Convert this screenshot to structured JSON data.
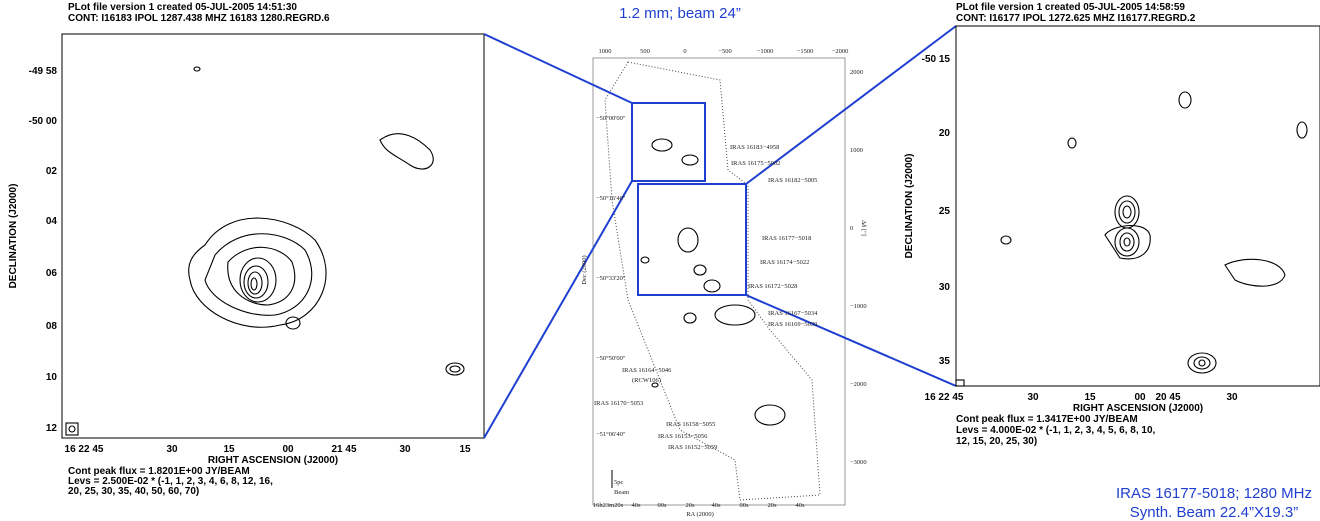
{
  "left": {
    "header": [
      "PLot file version 1  created 05-JUL-2005 14:51:30",
      "CONT: I16183  IPOL  1287.438 MHZ  16183 1280.REGRD.6"
    ],
    "y_ticks": [
      "-49 58",
      "-50 00",
      "02",
      "04",
      "06",
      "08",
      "10",
      "12"
    ],
    "x_ticks": [
      "16 22 45",
      "30",
      "15",
      "00",
      "21 45",
      "30",
      "15"
    ],
    "x_label": "RIGHT ASCENSION (J2000)",
    "y_label": "DECLINATION (J2000)",
    "footer": [
      "Cont peak flux =  1.8201E+00 JY/BEAM",
      "Levs = 2.500E-02 * (-1, 1, 2, 3, 4, 6, 8, 12, 16,",
      "20, 25, 30, 35, 40, 50, 60, 70)"
    ]
  },
  "center": {
    "title": "1.2 mm; beam 24”",
    "top_ticks": [
      "1000",
      "500",
      "0",
      "−500",
      "−1000",
      "−1500",
      "−2000"
    ],
    "right_ticks": [
      "2000",
      "1000",
      "0",
      "−1000",
      "−2000",
      "−3000"
    ],
    "left_ticks": [
      "−50°00'00\"",
      "−50°16'40\"",
      "−50°33'20\"",
      "−50°50'00\"",
      "−51°06'40\""
    ],
    "bottom_ticks": [
      "16h23m20s",
      "40s",
      "00s",
      "20s",
      "40s",
      "00s",
      "20s",
      "40s"
    ],
    "x_label": "RA (2000)",
    "y_label": "Dec (2000)",
    "y2_label": "Δδ [\"]",
    "scale_bar": "5pc",
    "beam": "Beam",
    "sources": [
      "IRAS 16183−4958",
      "IRAS 16175−5002",
      "IRAS 16182−5005",
      "IRAS 16177−5018",
      "IRAS 16174−5022",
      "IRAS 16172−5028",
      "IRAS 16167−5034",
      "IRAS 16169−5039",
      "IRAS 16164−5046",
      "(RCW106)",
      "IRAS 16170−5053",
      "IRAS 16158−5055",
      "IRAS 16153−5056",
      "IRAS 16152−5059"
    ]
  },
  "right": {
    "header": [
      "PLot file version 1  created 05-JUL-2005 14:58:59",
      "CONT: I16177  IPOL  1272.625 MHZ  I16177.REGRD.2"
    ],
    "y_ticks": [
      "-50 15",
      "20",
      "25",
      "30",
      "35"
    ],
    "x_ticks": [
      "16 22 45",
      "30",
      "15",
      "00",
      "20 45",
      "30"
    ],
    "x_label": "RIGHT ASCENSION (J2000)",
    "y_label": "DECLINATION (J2000)",
    "footer": [
      "Cont peak flux =  1.3417E+00 JY/BEAM",
      "Levs = 4.000E-02 * (-1, 1, 2, 3, 4, 5, 6, 8, 10,",
      "12, 15, 20, 25, 30)"
    ]
  },
  "caption": [
    "IRAS 16177-5018; 1280 MHz",
    "Synth. Beam 22.4”X19.3”"
  ]
}
